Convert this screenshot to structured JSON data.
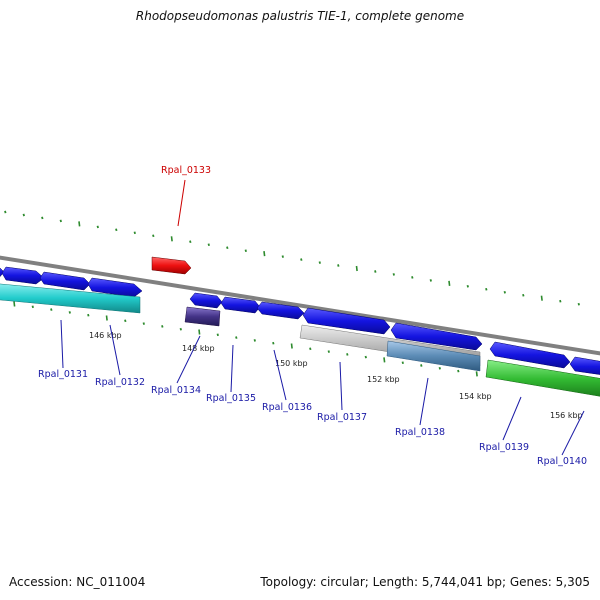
{
  "title": "Rhodopseudomonas palustris TIE-1, complete genome",
  "footer": {
    "accession": "Accession: NC_011004",
    "summary": "Topology: circular; Length: 5,744,041 bp; Genes: 5,305"
  },
  "kbp_labels": [
    "146 kbp",
    "148 kbp",
    "150 kbp",
    "152 kbp",
    "154 kbp",
    "156 kbp"
  ],
  "highlighted_gene": "Rpal_0133",
  "gene_labels": [
    "Rpal_0131",
    "Rpal_0132",
    "Rpal_0134",
    "Rpal_0135",
    "Rpal_0136",
    "Rpal_0137",
    "Rpal_0138",
    "Rpal_0139",
    "Rpal_0140"
  ],
  "colors": {
    "backbone": "#808080",
    "gene_blue": "#1a1ae6",
    "highlight_red": "#ee1111",
    "cyan": "#22cccc",
    "purple": "#443388",
    "grey": "#bbbbbb",
    "steel": "#5b8bb5",
    "green": "#33bb33",
    "tick_green": "#2e8b2e",
    "label_blue": "#1a1aa6",
    "label_red": "#cc0000"
  }
}
